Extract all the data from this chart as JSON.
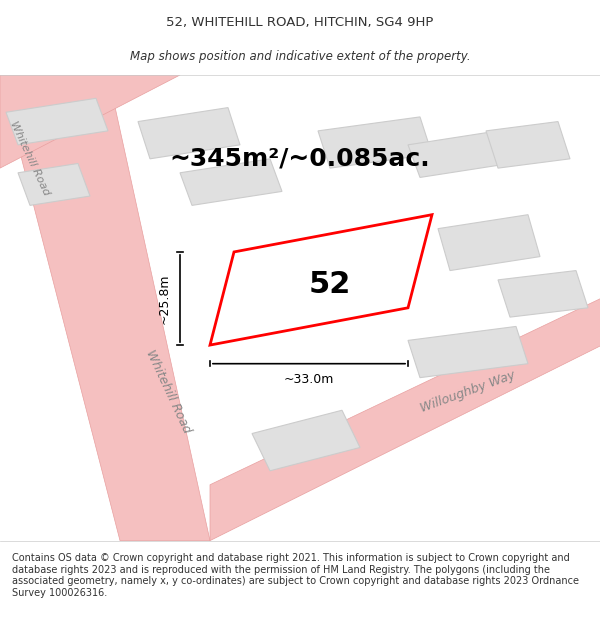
{
  "title": "52, WHITEHILL ROAD, HITCHIN, SG4 9HP",
  "subtitle": "Map shows position and indicative extent of the property.",
  "footer": "Contains OS data © Crown copyright and database right 2021. This information is subject to Crown copyright and database rights 2023 and is reproduced with the permission of HM Land Registry. The polygons (including the associated geometry, namely x, y co-ordinates) are subject to Crown copyright and database rights 2023 Ordnance Survey 100026316.",
  "area_label": "~345m²/~0.085ac.",
  "property_number": "52",
  "dim_width": "~33.0m",
  "dim_height": "~25.8m",
  "road_label_left": "Whitehill Road",
  "road_label_right": "Willoughby Way",
  "road_label_topleft": "Whitehill Road",
  "bg_color": "#f5f5f5",
  "map_bg": "#f0f0f0",
  "road_color": "#f5c0c0",
  "road_outline": "#e8a0a0",
  "building_color": "#e0e0e0",
  "building_outline": "#cccccc",
  "property_color": "#ffffff",
  "property_outline": "#ff0000",
  "dim_line_color": "#333333",
  "text_color": "#333333",
  "title_fontsize": 9.5,
  "subtitle_fontsize": 8.5,
  "footer_fontsize": 7.0,
  "area_fontsize": 18,
  "number_fontsize": 22,
  "road_fontsize": 9,
  "dim_fontsize": 9
}
